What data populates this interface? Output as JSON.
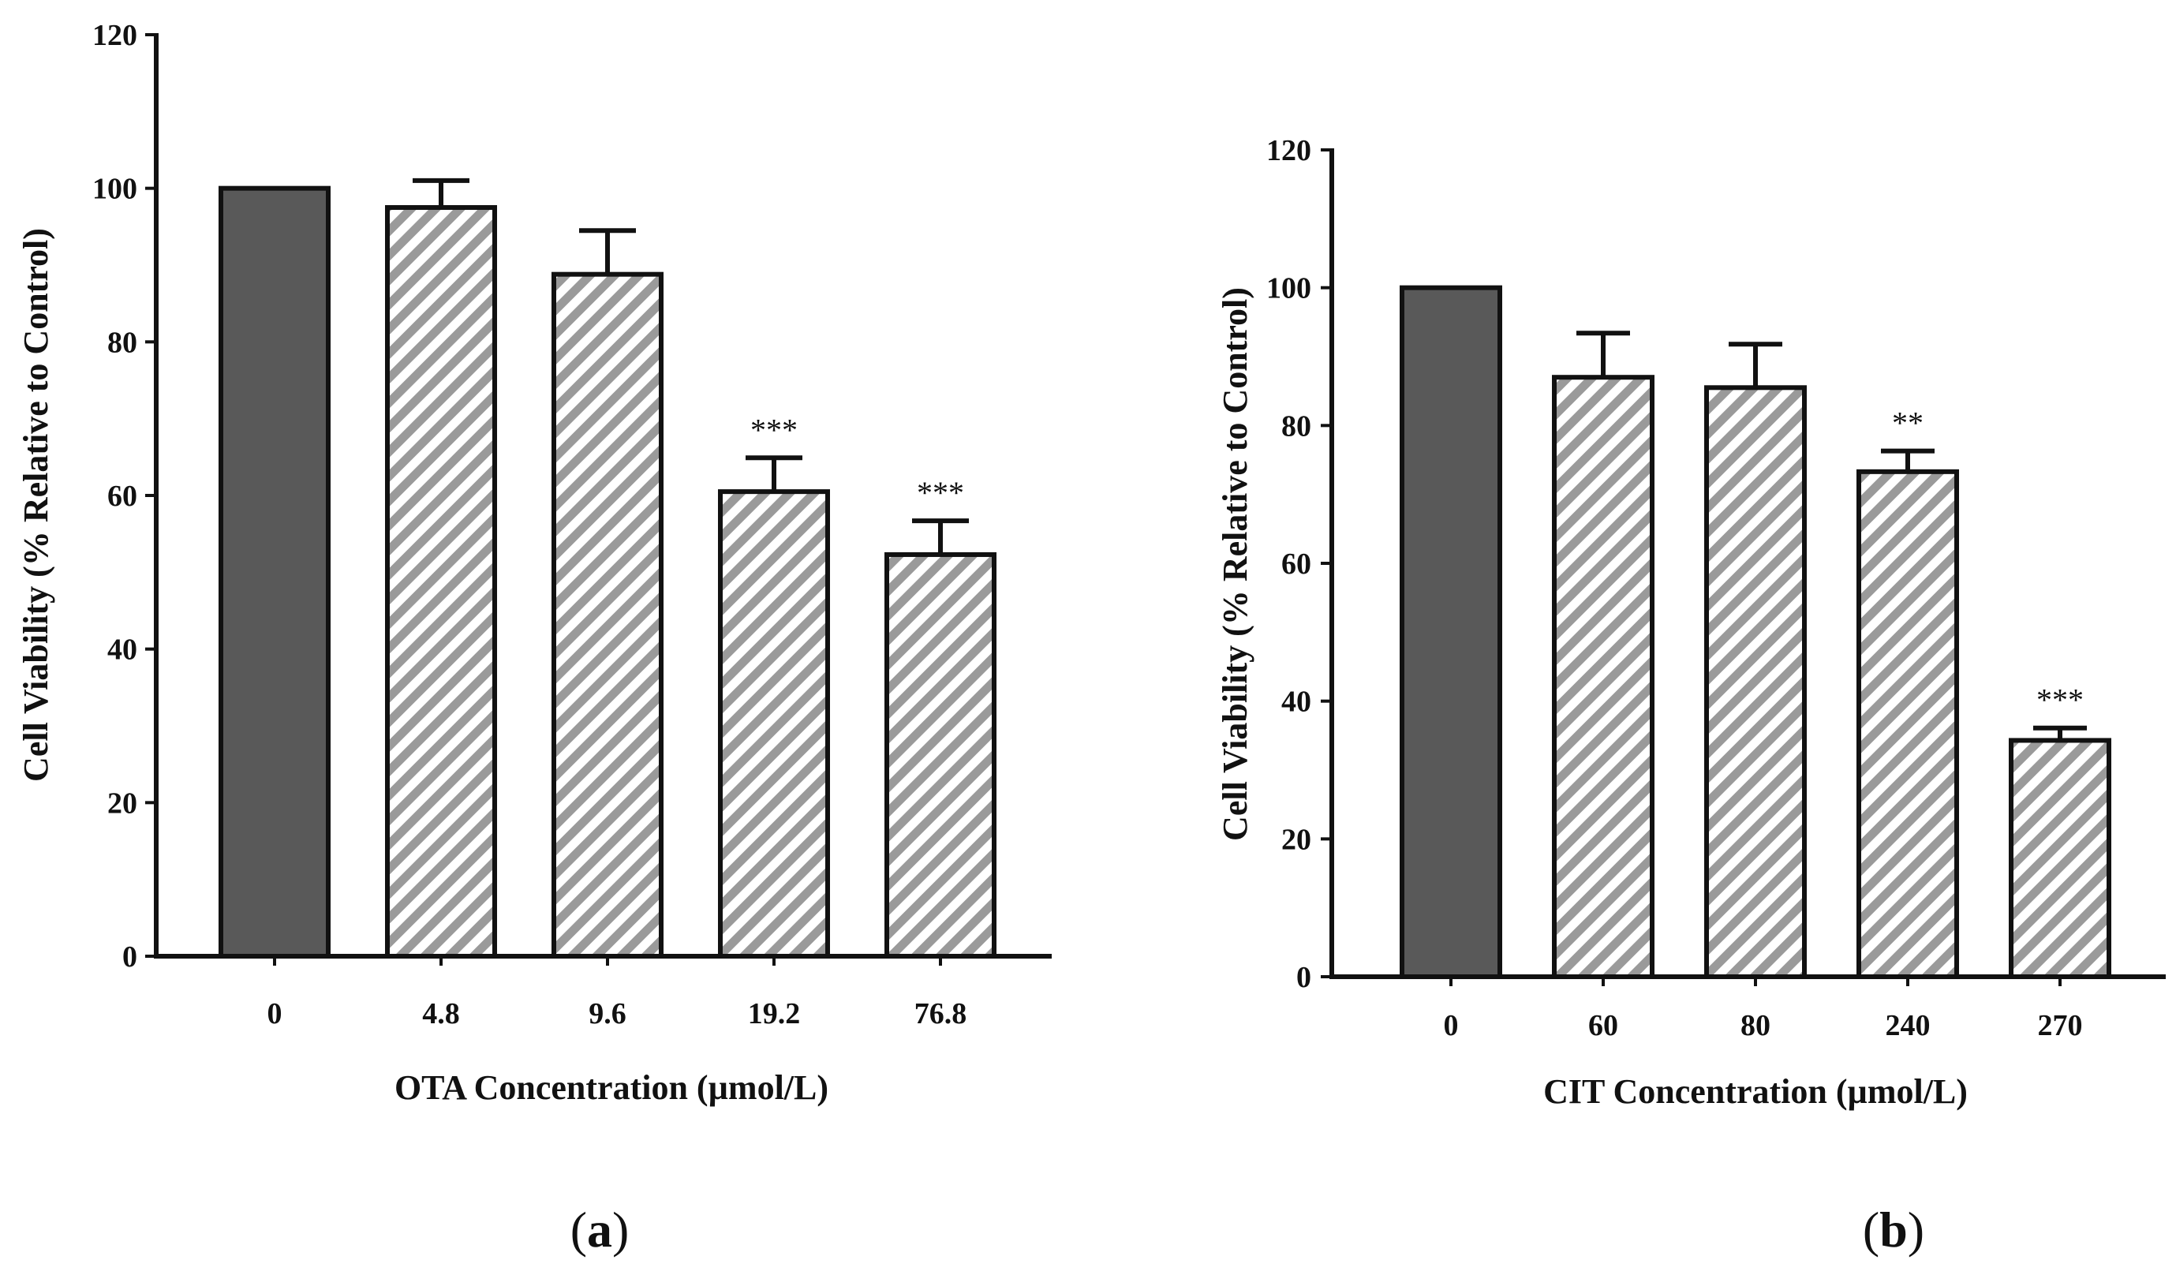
{
  "colors": {
    "control_fill": "#595959",
    "hatch_light": "#ffffff",
    "hatch_dark": "#9a9a9a",
    "outline": "#111111"
  },
  "chart_data": [
    {
      "type": "bar",
      "panel_label": "a",
      "title": "",
      "xlabel": "OTA Concentration (µmol/L)",
      "ylabel": "Cell Viability (% Relative to Control)",
      "ylim": [
        0,
        120
      ],
      "yticks": [
        0,
        20,
        40,
        60,
        80,
        100,
        120
      ],
      "categories": [
        "0",
        "4.8",
        "9.6",
        "19.2",
        "76.8"
      ],
      "values": [
        100,
        97.5,
        88.8,
        60.5,
        52.3
      ],
      "errors": [
        0,
        3.5,
        5.7,
        4.4,
        4.4
      ],
      "significance": [
        "",
        "",
        "",
        "***",
        "***"
      ],
      "styles": [
        "solid",
        "hatched",
        "hatched",
        "hatched",
        "hatched"
      ],
      "grid": false
    },
    {
      "type": "bar",
      "panel_label": "b",
      "title": "",
      "xlabel": "CIT Concentration (µmol/L)",
      "ylabel": "Cell Viability (% Relative to Control)",
      "ylim": [
        0,
        120
      ],
      "yticks": [
        0,
        20,
        40,
        60,
        80,
        100,
        120
      ],
      "categories": [
        "0",
        "60",
        "80",
        "240",
        "270"
      ],
      "values": [
        100,
        87,
        85.5,
        73.3,
        34.3
      ],
      "errors": [
        0,
        6.4,
        6.3,
        3.0,
        1.8
      ],
      "significance": [
        "",
        "",
        "",
        "**",
        "***"
      ],
      "styles": [
        "solid",
        "hatched",
        "hatched",
        "hatched",
        "hatched"
      ],
      "grid": false
    }
  ]
}
